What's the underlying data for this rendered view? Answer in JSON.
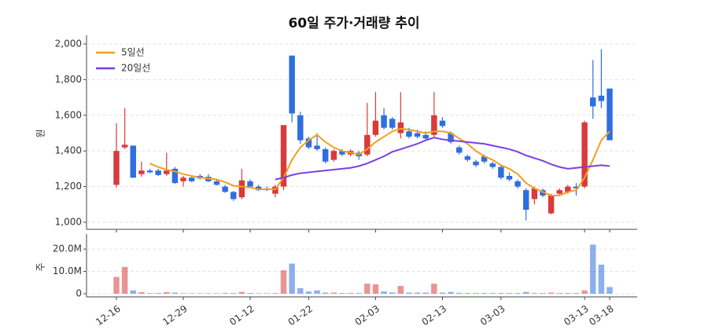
{
  "chart_data": [
    {
      "type": "candlestick",
      "title": "60일 주가·거래량 추이",
      "ylabel": "원",
      "open": [
        1210,
        1420,
        1430,
        1270,
        1290,
        1290,
        1270,
        1300,
        1230,
        1250,
        1260,
        1255,
        1230,
        1200,
        1170,
        1140,
        1230,
        1200,
        1190,
        1160,
        1200,
        1935,
        1600,
        1470,
        1430,
        1410,
        1350,
        1400,
        1380,
        1390,
        1380,
        1490,
        1600,
        1580,
        1500,
        1510,
        1500,
        1490,
        1490,
        1570,
        1500,
        1420,
        1370,
        1340,
        1370,
        1330,
        1310,
        1260,
        1230,
        1180,
        1130,
        1180,
        1050,
        1160,
        1170,
        1200,
        1200,
        1700,
        1710,
        1750
      ],
      "high": [
        1555,
        1640,
        1430,
        1340,
        1300,
        1300,
        1390,
        1310,
        1260,
        1255,
        1270,
        1270,
        1240,
        1210,
        1175,
        1300,
        1240,
        1210,
        1200,
        1210,
        1545,
        1935,
        1620,
        1480,
        1500,
        1420,
        1410,
        1410,
        1410,
        1400,
        1670,
        1730,
        1640,
        1590,
        1730,
        1530,
        1520,
        1510,
        1730,
        1590,
        1510,
        1430,
        1380,
        1350,
        1380,
        1340,
        1320,
        1280,
        1240,
        1190,
        1200,
        1190,
        1160,
        1190,
        1210,
        1220,
        1570,
        1910,
        1970,
        1750
      ],
      "low": [
        1195,
        1410,
        1250,
        1255,
        1275,
        1260,
        1260,
        1215,
        1200,
        1225,
        1240,
        1225,
        1205,
        1165,
        1120,
        1130,
        1195,
        1175,
        1175,
        1140,
        1180,
        1560,
        1440,
        1410,
        1400,
        1330,
        1340,
        1370,
        1370,
        1350,
        1370,
        1480,
        1520,
        1520,
        1470,
        1470,
        1470,
        1460,
        1480,
        1530,
        1440,
        1380,
        1340,
        1310,
        1330,
        1300,
        1240,
        1230,
        1190,
        1010,
        1100,
        1140,
        1045,
        1150,
        1160,
        1150,
        1190,
        1580,
        1640,
        1460
      ],
      "close": [
        1400,
        1435,
        1250,
        1290,
        1280,
        1265,
        1290,
        1220,
        1250,
        1230,
        1245,
        1230,
        1210,
        1170,
        1130,
        1235,
        1200,
        1180,
        1180,
        1200,
        1545,
        1610,
        1460,
        1420,
        1410,
        1340,
        1400,
        1380,
        1400,
        1370,
        1490,
        1570,
        1530,
        1530,
        1560,
        1480,
        1480,
        1470,
        1600,
        1540,
        1450,
        1390,
        1350,
        1320,
        1340,
        1310,
        1250,
        1240,
        1200,
        1070,
        1190,
        1150,
        1150,
        1180,
        1200,
        1190,
        1560,
        1650,
        1680,
        1460
      ],
      "up_color": "#d93a3a",
      "down_color": "#2f6ee0",
      "series": [
        {
          "name": "5일선",
          "color": "#f0a020",
          "values": [
            null,
            null,
            null,
            null,
            1330,
            1310,
            1295,
            1285,
            1270,
            1260,
            1250,
            1245,
            1240,
            1225,
            1205,
            1200,
            1195,
            1185,
            1185,
            1185,
            1250,
            1350,
            1420,
            1460,
            1490,
            1450,
            1420,
            1400,
            1390,
            1380,
            1410,
            1450,
            1480,
            1510,
            1525,
            1520,
            1510,
            1500,
            1510,
            1510,
            1500,
            1470,
            1440,
            1400,
            1370,
            1350,
            1320,
            1300,
            1270,
            1220,
            1190,
            1170,
            1150,
            1150,
            1170,
            1180,
            1250,
            1350,
            1460,
            1510
          ]
        },
        {
          "name": "20일선",
          "color": "#7b3fe4",
          "values": [
            null,
            null,
            null,
            null,
            null,
            null,
            null,
            null,
            null,
            null,
            null,
            null,
            null,
            null,
            null,
            null,
            null,
            null,
            null,
            1240,
            1250,
            1265,
            1275,
            1280,
            1285,
            1290,
            1295,
            1300,
            1305,
            1315,
            1330,
            1350,
            1370,
            1395,
            1410,
            1425,
            1440,
            1460,
            1475,
            1465,
            1460,
            1455,
            1450,
            1445,
            1440,
            1430,
            1420,
            1410,
            1395,
            1375,
            1360,
            1345,
            1325,
            1310,
            1300,
            1305,
            1310,
            1315,
            1320,
            1315
          ]
        }
      ],
      "ylim": [
        1000,
        2000
      ],
      "yticks": [
        {
          "value": 1000,
          "label": "1,000"
        },
        {
          "value": 1200,
          "label": "1,200"
        },
        {
          "value": 1400,
          "label": "1,400"
        },
        {
          "value": 1600,
          "label": "1,600"
        },
        {
          "value": 1800,
          "label": "1,800"
        },
        {
          "value": 2000,
          "label": "2,000"
        }
      ],
      "grid": true,
      "legend": "upper left"
    },
    {
      "type": "bar",
      "ylabel": "주",
      "categories": [
        "12-16",
        null,
        null,
        null,
        null,
        null,
        null,
        null,
        "12-29",
        null,
        null,
        null,
        null,
        null,
        null,
        null,
        "01-12",
        null,
        null,
        null,
        null,
        null,
        null,
        "01-22",
        null,
        null,
        null,
        null,
        null,
        null,
        null,
        "02-03",
        null,
        null,
        null,
        null,
        null,
        null,
        null,
        "02-13",
        null,
        null,
        null,
        null,
        null,
        null,
        "03-03",
        null,
        null,
        null,
        null,
        null,
        null,
        null,
        null,
        null,
        "03-13",
        null,
        null,
        "03-18"
      ],
      "values": [
        7.5,
        12,
        1.5,
        0.7,
        0.3,
        0.3,
        0.7,
        0.5,
        0.2,
        0.2,
        0.2,
        0.2,
        0.2,
        0.3,
        0.3,
        0.8,
        0.3,
        0.2,
        0.2,
        0.3,
        10.5,
        13.5,
        2.5,
        1,
        1.5,
        0.5,
        0.5,
        0.3,
        0.3,
        0.3,
        4.5,
        4.2,
        1,
        0.6,
        3.5,
        0.5,
        0.5,
        0.5,
        4.5,
        0.5,
        0.8,
        0.4,
        0.3,
        0.3,
        0.3,
        0.3,
        0.3,
        0.3,
        0.3,
        0.8,
        0.3,
        0.3,
        0.5,
        0.3,
        0.3,
        0.3,
        1.5,
        22,
        13,
        3
      ],
      "ylim": [
        0,
        22.5
      ],
      "yticks": [
        0,
        {
          "value": 10,
          "label": "10.0M"
        },
        {
          "value": 20,
          "label": "20.0M"
        }
      ],
      "grid": true
    }
  ]
}
